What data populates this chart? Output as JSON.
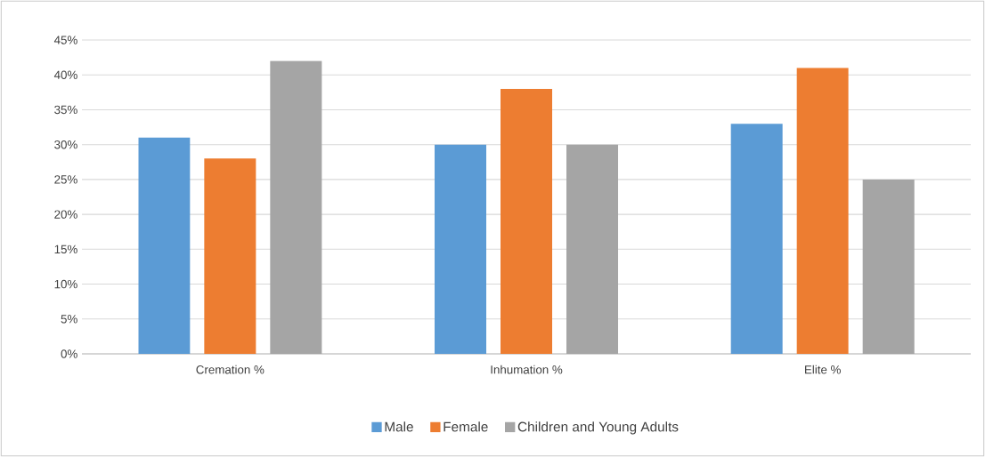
{
  "chart_data": {
    "type": "bar",
    "categories": [
      "Cremation %",
      "Inhumation %",
      "Elite %"
    ],
    "series": [
      {
        "name": "Male",
        "color": "#5b9bd5",
        "values": [
          31,
          30,
          33
        ]
      },
      {
        "name": "Female",
        "color": "#ed7d31",
        "values": [
          28,
          38,
          41
        ]
      },
      {
        "name": "Children and Young Adults",
        "color": "#a5a5a5",
        "values": [
          42,
          30,
          25
        ]
      }
    ],
    "ylim": [
      0,
      45
    ],
    "yticks": [
      {
        "value": 0,
        "label": "0%"
      },
      {
        "value": 5,
        "label": "5%"
      },
      {
        "value": 10,
        "label": "10%"
      },
      {
        "value": 15,
        "label": "15%"
      },
      {
        "value": 20,
        "label": "20%"
      },
      {
        "value": 25,
        "label": "25%"
      },
      {
        "value": 30,
        "label": "30%"
      },
      {
        "value": 35,
        "label": "35%"
      },
      {
        "value": 40,
        "label": "40%"
      },
      {
        "value": 45,
        "label": "45%"
      }
    ],
    "grid": "y",
    "legend": "bottom"
  }
}
